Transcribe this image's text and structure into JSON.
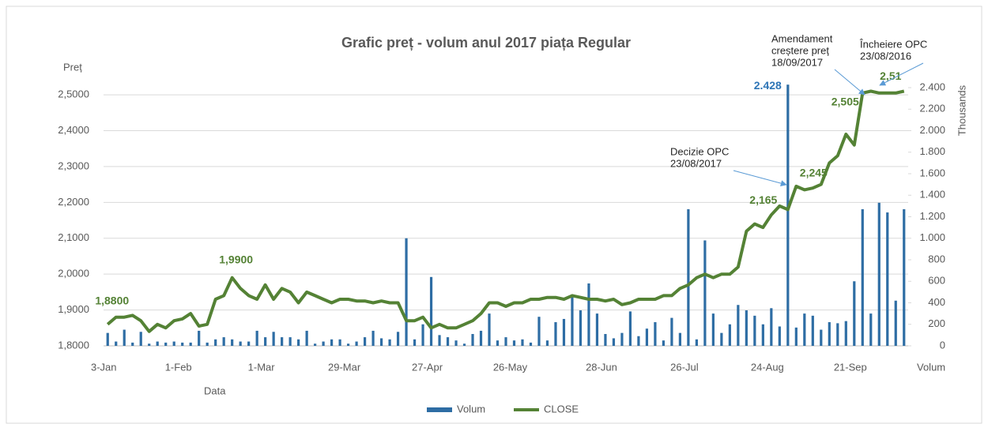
{
  "chart_data": {
    "type": "combo",
    "title": "Grafic preț - volum anul 2017 piața Regular",
    "y_axis_label": "Preț",
    "y2_axis_label": "Thousands",
    "x_axis_label": "Data",
    "y2_axis_title": "Volum",
    "categories": [
      "3-Jan",
      null,
      null,
      null,
      null,
      null,
      null,
      null,
      null,
      "1-Feb",
      null,
      null,
      null,
      null,
      null,
      null,
      null,
      null,
      null,
      "1-Mar",
      null,
      null,
      null,
      null,
      null,
      null,
      null,
      null,
      null,
      "29-Mar",
      null,
      null,
      null,
      null,
      null,
      null,
      null,
      null,
      null,
      "27-Apr",
      null,
      null,
      null,
      null,
      null,
      null,
      null,
      null,
      null,
      "26-May",
      null,
      null,
      null,
      null,
      null,
      null,
      null,
      null,
      null,
      null,
      "28-Jun",
      null,
      null,
      null,
      null,
      null,
      null,
      null,
      null,
      null,
      "26-Jul",
      null,
      null,
      null,
      null,
      null,
      null,
      null,
      null,
      null,
      "24-Aug",
      null,
      null,
      null,
      null,
      null,
      null,
      null,
      null,
      null,
      "21-Sep",
      null,
      null,
      null,
      null,
      null,
      null
    ],
    "series": [
      {
        "name": "Volum",
        "type": "bar",
        "axis": "y2",
        "color": "#2e6da4",
        "values": [
          120,
          40,
          150,
          30,
          130,
          20,
          40,
          30,
          40,
          30,
          30,
          140,
          30,
          60,
          80,
          60,
          40,
          40,
          140,
          80,
          130,
          80,
          80,
          60,
          140,
          20,
          40,
          60,
          60,
          20,
          40,
          80,
          140,
          70,
          60,
          130,
          1000,
          60,
          200,
          640,
          100,
          80,
          50,
          20,
          110,
          140,
          300,
          50,
          80,
          50,
          60,
          30,
          270,
          50,
          220,
          250,
          460,
          330,
          580,
          300,
          110,
          70,
          120,
          320,
          90,
          160,
          220,
          50,
          260,
          120,
          1270,
          60,
          980,
          300,
          120,
          200,
          380,
          330,
          280,
          200,
          350,
          180,
          2428,
          170,
          300,
          280,
          150,
          220,
          210,
          230,
          600,
          1270,
          300,
          1330,
          1240,
          420,
          1270
        ],
        "value_labels": [
          null,
          null,
          null,
          null,
          null,
          null,
          null,
          null,
          null,
          null,
          null,
          null,
          null,
          null,
          null,
          null,
          null,
          null,
          null,
          null,
          null,
          null,
          null,
          null,
          null,
          null,
          null,
          null,
          null,
          null,
          null,
          null,
          null,
          null,
          null,
          null,
          null,
          null,
          null,
          null,
          null,
          null,
          null,
          null,
          null,
          null,
          null,
          null,
          null,
          null,
          null,
          null,
          null,
          null,
          null,
          null,
          null,
          null,
          null,
          null,
          null,
          null,
          null,
          null,
          null,
          null,
          null,
          null,
          null,
          null,
          null,
          null,
          null,
          null,
          null,
          null,
          null,
          null,
          null,
          null,
          null,
          null,
          "2.428",
          null,
          null,
          null,
          null,
          null,
          null,
          null,
          null,
          null,
          null,
          null,
          null,
          null,
          null
        ]
      },
      {
        "name": "CLOSE",
        "type": "line",
        "axis": "y",
        "color": "#548235",
        "values": [
          1.86,
          1.88,
          1.88,
          1.885,
          1.87,
          1.84,
          1.86,
          1.85,
          1.87,
          1.875,
          1.89,
          1.855,
          1.86,
          1.93,
          1.94,
          1.99,
          1.96,
          1.94,
          1.93,
          1.97,
          1.93,
          1.96,
          1.95,
          1.92,
          1.95,
          1.94,
          1.93,
          1.92,
          1.93,
          1.93,
          1.925,
          1.925,
          1.92,
          1.925,
          1.92,
          1.92,
          1.87,
          1.87,
          1.88,
          1.85,
          1.86,
          1.85,
          1.85,
          1.86,
          1.87,
          1.89,
          1.92,
          1.92,
          1.91,
          1.92,
          1.92,
          1.93,
          1.93,
          1.935,
          1.935,
          1.93,
          1.94,
          1.935,
          1.93,
          1.93,
          1.925,
          1.93,
          1.915,
          1.92,
          1.93,
          1.93,
          1.93,
          1.94,
          1.94,
          1.96,
          1.97,
          1.99,
          2.0,
          1.99,
          2.0,
          2.0,
          2.02,
          2.12,
          2.14,
          2.13,
          2.165,
          2.19,
          2.18,
          2.245,
          2.235,
          2.24,
          2.25,
          2.31,
          2.33,
          2.39,
          2.36,
          2.505,
          2.51,
          2.505,
          2.505,
          2.505,
          2.51
        ],
        "value_labels": [
          null,
          "1,8800",
          null,
          null,
          null,
          null,
          null,
          null,
          null,
          null,
          null,
          null,
          null,
          null,
          null,
          "1,9900",
          null,
          null,
          null,
          null,
          null,
          null,
          null,
          null,
          null,
          null,
          null,
          null,
          null,
          null,
          null,
          null,
          null,
          null,
          null,
          null,
          null,
          null,
          null,
          null,
          null,
          null,
          null,
          null,
          null,
          null,
          null,
          null,
          null,
          null,
          null,
          null,
          null,
          null,
          null,
          null,
          null,
          null,
          null,
          null,
          null,
          null,
          null,
          null,
          null,
          null,
          null,
          null,
          null,
          null,
          null,
          null,
          null,
          null,
          null,
          null,
          null,
          null,
          null,
          null,
          "2,165",
          null,
          null,
          "2,245",
          null,
          null,
          null,
          null,
          null,
          null,
          null,
          "2,505",
          "2,51",
          null,
          null,
          null,
          null
        ]
      }
    ],
    "ylim": [
      1.8,
      2.52
    ],
    "yticks": [
      {
        "value": 1.8,
        "label": "1,8000"
      },
      {
        "value": 1.9,
        "label": "1,9000"
      },
      {
        "value": 2.0,
        "label": "2,0000"
      },
      {
        "value": 2.1,
        "label": "2,1000"
      },
      {
        "value": 2.2,
        "label": "2,2000"
      },
      {
        "value": 2.3,
        "label": "2,3000"
      },
      {
        "value": 2.4,
        "label": "2,4000"
      },
      {
        "value": 2.5,
        "label": "2,5000"
      }
    ],
    "y2lim": [
      0,
      2400
    ],
    "y2ticks": [
      0,
      200,
      400,
      600,
      800,
      {
        "value": 1000,
        "label": "1.000"
      },
      {
        "value": 1200,
        "label": "1.200"
      },
      {
        "value": 1400,
        "label": "1.400"
      },
      {
        "value": 1600,
        "label": "1.600"
      },
      {
        "value": 1800,
        "label": "1.800"
      },
      {
        "value": 2000,
        "label": "2.000"
      },
      {
        "value": 2200,
        "label": "2.200"
      },
      {
        "value": 2400,
        "label": "2.400"
      }
    ],
    "grid": true,
    "legend": "bottom",
    "annotations": [
      {
        "lines": [
          "Decizie OPC",
          "23/08/2017"
        ]
      },
      {
        "lines": [
          "Amendament",
          "creștere preț",
          "18/09/2017"
        ]
      },
      {
        "lines": [
          "Încheiere OPC",
          "23/08/2016"
        ]
      }
    ]
  }
}
